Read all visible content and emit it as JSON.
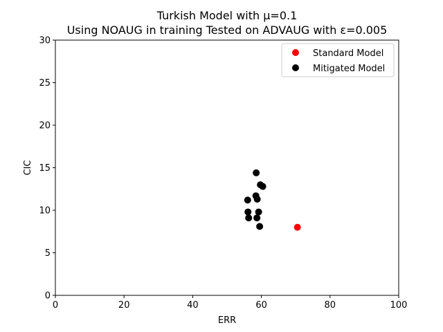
{
  "chart_data": {
    "type": "scatter",
    "title": "Turkish Model with μ=0.1",
    "subtitle": "Using NOAUG in training Tested on ADVAUG with ε=0.005",
    "xlabel": "ERR",
    "ylabel": "CIC",
    "xlim": [
      0,
      100
    ],
    "ylim": [
      0,
      30
    ],
    "xticks": [
      "0",
      "20",
      "40",
      "60",
      "80",
      "100"
    ],
    "yticks": [
      "0",
      "5",
      "10",
      "15",
      "20",
      "25",
      "30"
    ],
    "grid": false,
    "legend_position": "top-right",
    "series": [
      {
        "name": "Standard Model",
        "color": "#ff0000",
        "points": [
          {
            "x": 70.5,
            "y": 8.0
          }
        ]
      },
      {
        "name": "Mitigated Model",
        "color": "#000000",
        "points": [
          {
            "x": 58.5,
            "y": 14.4
          },
          {
            "x": 59.7,
            "y": 13.0
          },
          {
            "x": 60.4,
            "y": 12.8
          },
          {
            "x": 58.4,
            "y": 11.7
          },
          {
            "x": 58.8,
            "y": 11.3
          },
          {
            "x": 56.0,
            "y": 11.2
          },
          {
            "x": 56.1,
            "y": 9.8
          },
          {
            "x": 59.2,
            "y": 9.8
          },
          {
            "x": 56.3,
            "y": 9.1
          },
          {
            "x": 58.7,
            "y": 9.1
          },
          {
            "x": 59.5,
            "y": 8.1
          }
        ]
      }
    ]
  }
}
